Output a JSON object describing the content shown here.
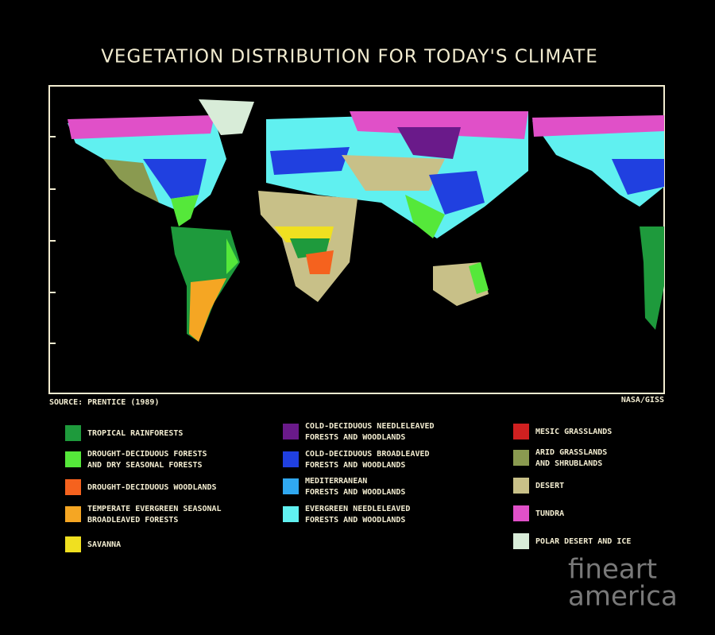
{
  "title": "VEGETATION DISTRIBUTION FOR TODAY'S CLIMATE",
  "source": "SOURCE: PRENTICE (1989)",
  "credit": "NASA/GISS",
  "legend": {
    "columns": [
      [
        {
          "lines": [
            "TROPICAL RAINFORESTS"
          ],
          "color": "#1e9a3c"
        },
        {
          "lines": [
            "DROUGHT-DECIDUOUS FORESTS",
            "AND DRY SEASONAL FORESTS"
          ],
          "color": "#55e83a"
        },
        {
          "lines": [
            "DROUGHT-DECIDUOUS WOODLANDS"
          ],
          "color": "#f5621e"
        },
        {
          "lines": [
            "TEMPERATE EVERGREEN SEASONAL",
            "BROADLEAVED FORESTS"
          ],
          "color": "#f5a623"
        },
        {
          "lines": [
            "SAVANNA"
          ],
          "color": "#f0e020"
        }
      ],
      [
        {
          "lines": [
            "COLD-DECIDUOUS NEEDLELEAVED",
            "FORESTS AND WOODLANDS"
          ],
          "color": "#6a1a8a"
        },
        {
          "lines": [
            "COLD-DECIDUOUS BROADLEAVED",
            "FORESTS AND WOODLANDS"
          ],
          "color": "#2040e0"
        },
        {
          "lines": [
            "MEDITERRANEAN",
            "FORESTS AND WOODLANDS"
          ],
          "color": "#30a8f0"
        },
        {
          "lines": [
            "EVERGREEN NEEDLELEAVED",
            "FORESTS AND WOODLANDS"
          ],
          "color": "#60f0f0"
        }
      ],
      [
        {
          "lines": [
            "MESIC GRASSLANDS"
          ],
          "color": "#d02020"
        },
        {
          "lines": [
            "ARID GRASSLANDS",
            "AND SHRUBLANDS"
          ],
          "color": "#8a9a50"
        },
        {
          "lines": [
            "DESERT"
          ],
          "color": "#c8c088"
        },
        {
          "lines": [
            "TUNDRA"
          ],
          "color": "#e050c8"
        },
        {
          "lines": [
            "POLAR DESERT AND ICE"
          ],
          "color": "#d8ecd8"
        }
      ]
    ]
  },
  "watermark": [
    "fineart",
    "america"
  ]
}
